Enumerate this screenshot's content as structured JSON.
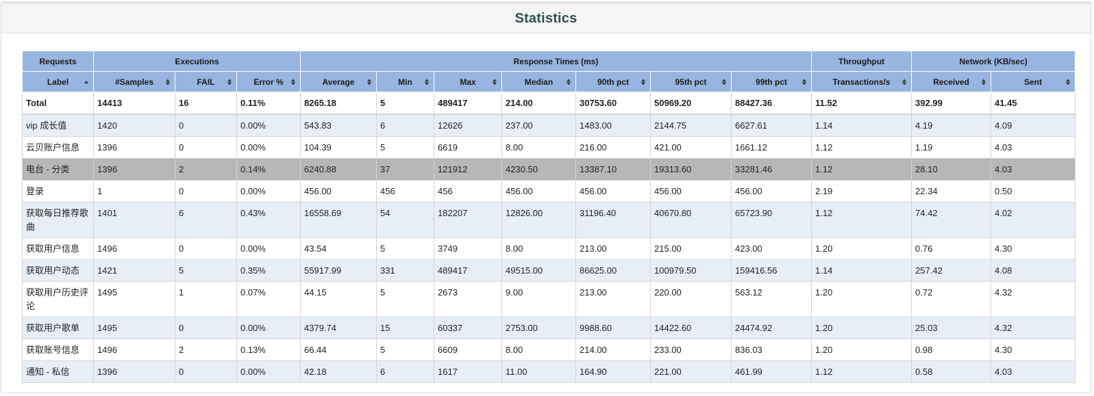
{
  "page": {
    "title": "Statistics"
  },
  "groups": [
    {
      "label": "Requests",
      "span": 1
    },
    {
      "label": "Executions",
      "span": 3
    },
    {
      "label": "Response Times (ms)",
      "span": 7
    },
    {
      "label": "Throughput",
      "span": 1
    },
    {
      "label": "Network (KB/sec)",
      "span": 2
    }
  ],
  "columns": [
    {
      "key": "label",
      "label": "Label",
      "sort": "asc"
    },
    {
      "key": "samples",
      "label": "#Samples",
      "sort": "both"
    },
    {
      "key": "fail",
      "label": "FAIL",
      "sort": "both"
    },
    {
      "key": "error",
      "label": "Error %",
      "sort": "both"
    },
    {
      "key": "average",
      "label": "Average",
      "sort": "both"
    },
    {
      "key": "min",
      "label": "Min",
      "sort": "both"
    },
    {
      "key": "max",
      "label": "Max",
      "sort": "both"
    },
    {
      "key": "median",
      "label": "Median",
      "sort": "both"
    },
    {
      "key": "p90",
      "label": "90th pct",
      "sort": "both"
    },
    {
      "key": "p95",
      "label": "95th pct",
      "sort": "both"
    },
    {
      "key": "p99",
      "label": "99th pct",
      "sort": "both"
    },
    {
      "key": "tps",
      "label": "Transactions/s",
      "sort": "both"
    },
    {
      "key": "received",
      "label": "Received",
      "sort": "both"
    },
    {
      "key": "sent",
      "label": "Sent",
      "sort": "both"
    }
  ],
  "total": [
    "Total",
    "14413",
    "16",
    "0.11%",
    "8265.18",
    "5",
    "489417",
    "214.00",
    "30753.60",
    "50969.20",
    "88427.36",
    "11.52",
    "392.99",
    "41.45"
  ],
  "rows": [
    {
      "cells": [
        "vip 成长值",
        "1420",
        "0",
        "0.00%",
        "543.83",
        "6",
        "12626",
        "237.00",
        "1483.00",
        "2144.75",
        "6627.61",
        "1.14",
        "4.19",
        "4.09"
      ],
      "highlight": false
    },
    {
      "cells": [
        "云贝账户信息",
        "1396",
        "0",
        "0.00%",
        "104.39",
        "5",
        "6619",
        "8.00",
        "216.00",
        "421.00",
        "1661.12",
        "1.12",
        "1.19",
        "4.03"
      ],
      "highlight": false
    },
    {
      "cells": [
        "电台 - 分类",
        "1396",
        "2",
        "0.14%",
        "6240.88",
        "37",
        "121912",
        "4230.50",
        "13387.10",
        "19313.60",
        "33281.46",
        "1.12",
        "28.10",
        "4.03"
      ],
      "highlight": true
    },
    {
      "cells": [
        "登录",
        "1",
        "0",
        "0.00%",
        "456.00",
        "456",
        "456",
        "456.00",
        "456.00",
        "456.00",
        "456.00",
        "2.19",
        "22.34",
        "0.50"
      ],
      "highlight": false
    },
    {
      "cells": [
        "获取每日推荐歌曲",
        "1401",
        "6",
        "0.43%",
        "16558.69",
        "54",
        "182207",
        "12826.00",
        "31196.40",
        "40670.80",
        "65723.90",
        "1.12",
        "74.42",
        "4.02"
      ],
      "highlight": false
    },
    {
      "cells": [
        "获取用户信息",
        "1496",
        "0",
        "0.00%",
        "43.54",
        "5",
        "3749",
        "8.00",
        "213.00",
        "215.00",
        "423.00",
        "1.20",
        "0.76",
        "4.30"
      ],
      "highlight": false
    },
    {
      "cells": [
        "获取用户动态",
        "1421",
        "5",
        "0.35%",
        "55917.99",
        "331",
        "489417",
        "49515.00",
        "86625.00",
        "100979.50",
        "159416.56",
        "1.14",
        "257.42",
        "4.08"
      ],
      "highlight": false
    },
    {
      "cells": [
        "获取用户历史评论",
        "1495",
        "1",
        "0.07%",
        "44.15",
        "5",
        "2673",
        "9.00",
        "213.00",
        "220.00",
        "563.12",
        "1.20",
        "0.72",
        "4.32"
      ],
      "highlight": false
    },
    {
      "cells": [
        "获取用户歌单",
        "1495",
        "0",
        "0.00%",
        "4379.74",
        "15",
        "60337",
        "2753.00",
        "9988.60",
        "14422.60",
        "24474.92",
        "1.20",
        "25.03",
        "4.32"
      ],
      "highlight": false
    },
    {
      "cells": [
        "获取账号信息",
        "1496",
        "2",
        "0.13%",
        "66.44",
        "5",
        "6609",
        "8.00",
        "214.00",
        "233.00",
        "836.03",
        "1.20",
        "0.98",
        "4.30"
      ],
      "highlight": false
    },
    {
      "cells": [
        "通知 - 私信",
        "1396",
        "0",
        "0.00%",
        "42.18",
        "6",
        "1617",
        "11.00",
        "164.90",
        "221.00",
        "461.99",
        "1.12",
        "0.58",
        "4.03"
      ],
      "highlight": false
    }
  ]
}
